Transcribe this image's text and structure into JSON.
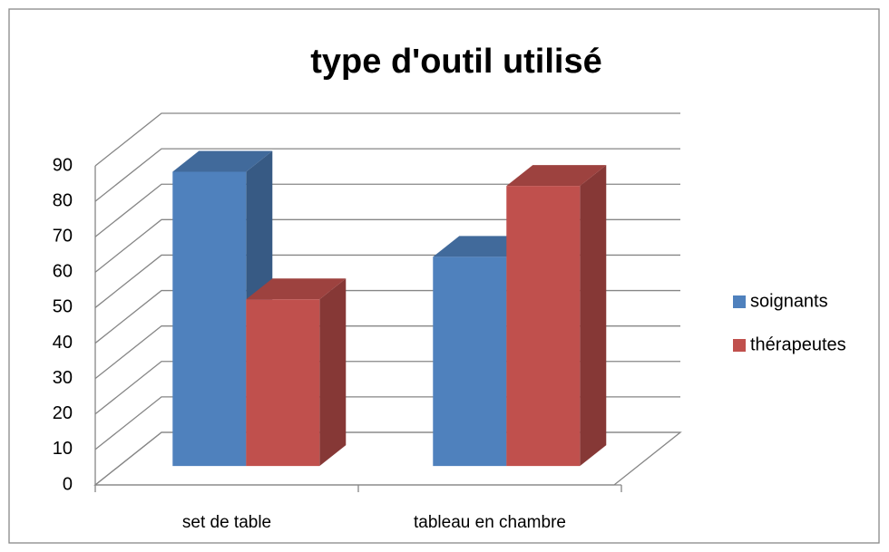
{
  "chart_data": {
    "type": "bar3d",
    "title": "type d'outil utilisé",
    "categories": [
      "set de table",
      "tableau en chambre"
    ],
    "series": [
      {
        "name": "soignants",
        "color": "#4f81bd",
        "values": [
          83,
          59
        ]
      },
      {
        "name": "thérapeutes",
        "color": "#c0504d",
        "values": [
          47,
          79
        ]
      }
    ],
    "ylim": [
      0,
      90
    ],
    "yticks": [
      0,
      10,
      20,
      30,
      40,
      50,
      60,
      70,
      80,
      90
    ],
    "grid": true,
    "legend": "right"
  }
}
